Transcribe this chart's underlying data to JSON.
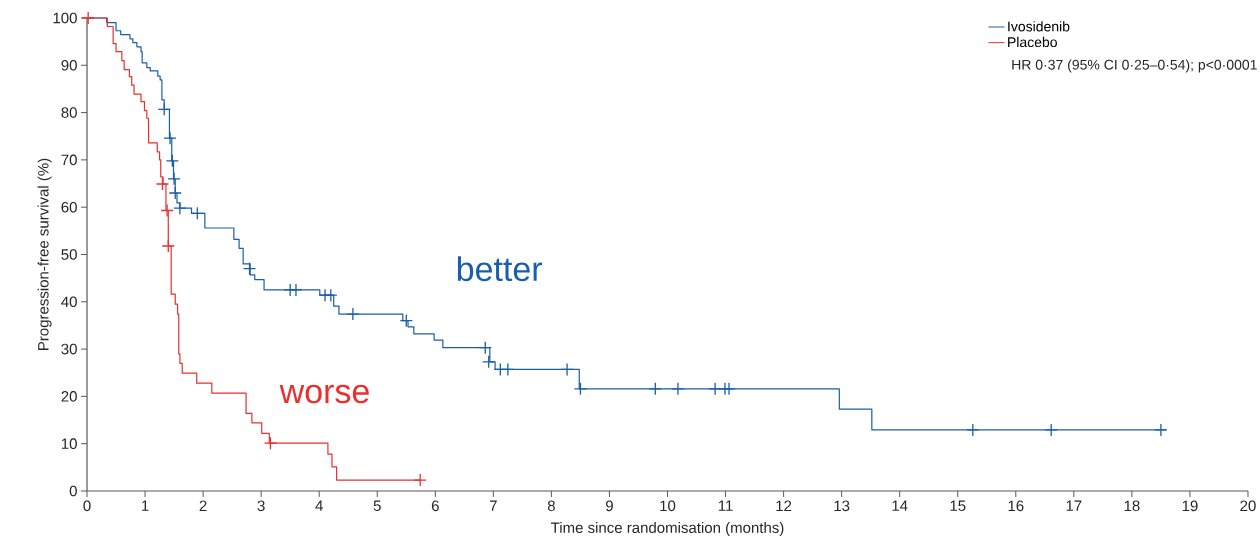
{
  "chart_data": {
    "type": "step",
    "xlabel": "Time since randomisation (months)",
    "ylabel": "Progression-free survival (%)",
    "xlim": [
      0,
      20
    ],
    "ylim": [
      0,
      100
    ],
    "xticks": [
      0,
      1,
      2,
      3,
      4,
      5,
      6,
      7,
      8,
      9,
      10,
      11,
      12,
      13,
      14,
      15,
      16,
      17,
      18,
      19,
      20
    ],
    "yticks": [
      0,
      10,
      20,
      30,
      40,
      50,
      60,
      70,
      80,
      90,
      100
    ],
    "grid": false,
    "legend": "top right",
    "marker": "none",
    "line_style": "solid",
    "annotations": [
      "HR 0·37 (95% CI 0·25–0·54); p<0·0001",
      "better",
      "worse"
    ],
    "series": [
      {
        "name": "Ivosidenib",
        "color": "#1a5ea8",
        "x": [
          0,
          0.34,
          0.5,
          0.58,
          0.74,
          0.79,
          0.86,
          0.93,
          0.95,
          1.03,
          1.09,
          1.22,
          1.26,
          1.29,
          1.33,
          1.42,
          1.46,
          1.49,
          1.52,
          1.55,
          1.6,
          1.8,
          2.03,
          2.53,
          2.62,
          2.69,
          2.81,
          2.89,
          3.05,
          4.01,
          4.25,
          4.34,
          5.44,
          5.53,
          5.63,
          5.98,
          6.13,
          6.94,
          7.03,
          8.48,
          12.96,
          13.52,
          18.59
        ],
        "values": [
          100,
          99,
          97.3,
          96.5,
          95.6,
          94.8,
          93.9,
          92.9,
          90.5,
          89.5,
          88.8,
          87.7,
          86.9,
          82.7,
          80.7,
          74.6,
          69.8,
          66,
          63,
          60.9,
          59.8,
          58.7,
          55.6,
          53.2,
          51.3,
          48,
          45.7,
          44.7,
          42.5,
          41.4,
          39.1,
          37.4,
          36.0,
          34.7,
          33.2,
          31.9,
          30.3,
          27.3,
          25.7,
          21.6,
          17.3,
          12.9,
          12.9
        ]
      },
      {
        "name": "Placebo",
        "color": "#e8312f",
        "x": [
          0,
          0.35,
          0.45,
          0.5,
          0.6,
          0.64,
          0.73,
          0.77,
          0.81,
          0.93,
          0.99,
          1.03,
          1.06,
          1.21,
          1.25,
          1.27,
          1.31,
          1.36,
          1.4,
          1.45,
          1.52,
          1.56,
          1.58,
          1.6,
          1.64,
          1.89,
          2.15,
          2.74,
          2.84,
          3.01,
          3.14,
          4.15,
          4.22,
          4.3,
          5.74
        ],
        "values": [
          100,
          98.2,
          94.6,
          92.9,
          91.0,
          89.1,
          87.6,
          85.8,
          83.9,
          82.3,
          80.4,
          78.8,
          73.6,
          71.7,
          70.0,
          66.4,
          64.9,
          59.3,
          51.8,
          41.6,
          39.5,
          37.4,
          29.0,
          27.0,
          24.9,
          22.8,
          20.7,
          16.4,
          14.4,
          12.2,
          10.1,
          7.8,
          5.1,
          2.3,
          2.3
        ]
      },
      {
        "color": "#1a5ea8",
        "type": "scatter",
        "marker": "cross",
        "x": [
          1.33,
          1.43,
          1.47,
          1.5,
          1.52,
          1.6,
          1.9,
          2.8,
          3.5,
          3.6,
          4.1,
          4.2,
          4.58,
          5.5,
          6.86,
          6.92,
          7.12,
          7.25,
          8.27,
          8.5,
          9.79,
          10.18,
          10.82,
          10.99,
          11.06,
          15.26,
          16.61,
          18.5
        ],
        "values": [
          80.7,
          74.6,
          69.8,
          66,
          63,
          59.8,
          58.7,
          47,
          42.5,
          42.5,
          41.4,
          41.4,
          37.4,
          36.0,
          30.3,
          27.3,
          25.7,
          25.7,
          25.7,
          21.6,
          21.6,
          21.6,
          21.6,
          21.6,
          21.6,
          12.9,
          12.9,
          12.9
        ]
      },
      {
        "color": "#e8312f",
        "type": "scatter",
        "marker": "cross",
        "x": [
          0.02,
          1.3,
          1.38,
          1.4,
          3.16,
          5.74
        ],
        "values": [
          100,
          64.9,
          59.3,
          51.8,
          10.1,
          2.3
        ]
      }
    ]
  }
}
